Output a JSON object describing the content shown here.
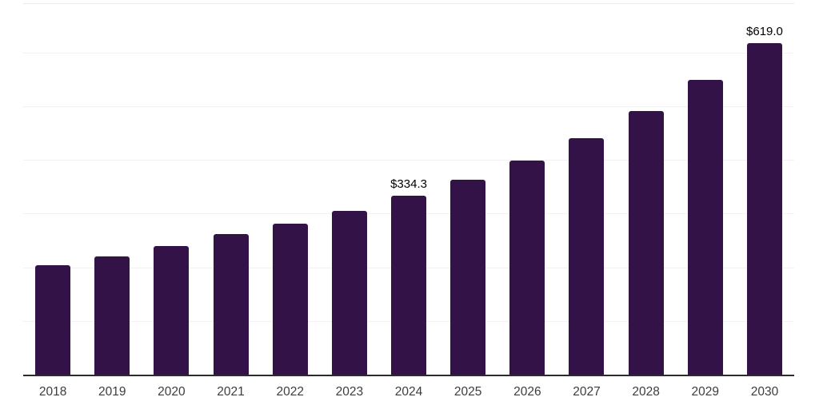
{
  "chart_data": {
    "type": "bar",
    "title": "",
    "xlabel": "",
    "ylabel": "",
    "categories": [
      "2018",
      "2019",
      "2020",
      "2021",
      "2022",
      "2023",
      "2024",
      "2025",
      "2026",
      "2027",
      "2028",
      "2029",
      "2030"
    ],
    "values": [
      205,
      222,
      241,
      263,
      282,
      307,
      334.3,
      364,
      400,
      442,
      492,
      551,
      619
    ],
    "data_labels": [
      "",
      "",
      "",
      "",
      "",
      "",
      "$334.3",
      "",
      "",
      "",
      "",
      "",
      "$619.0"
    ],
    "ylim": [
      0,
      693
    ],
    "gridline_values": [
      100,
      200,
      300,
      400,
      500,
      600
    ],
    "grid": "horizontal",
    "legend_position": "none"
  },
  "colors": {
    "bar": "#321247",
    "axis_line": "#2b2b2b",
    "gridline": "#f2f2f4",
    "plot_top_border": "#ececf0",
    "tick_label": "#3d3d3d",
    "data_label": "#000000",
    "background": "#ffffff"
  }
}
